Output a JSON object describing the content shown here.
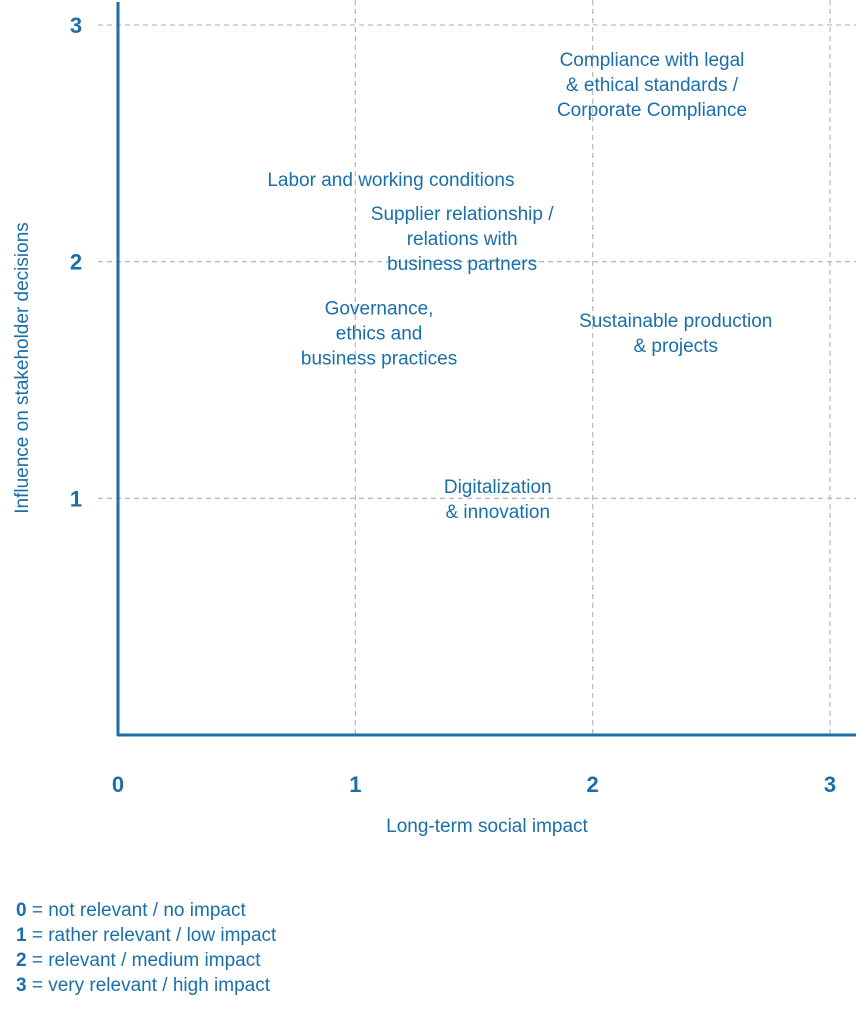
{
  "chart_data": {
    "type": "scatter",
    "title": "",
    "xlabel": "Long-term social impact",
    "ylabel": "Influence on stakeholder decisions",
    "xlim": [
      0,
      3
    ],
    "ylim": [
      0,
      3
    ],
    "x_ticks": [
      "0",
      "1",
      "2",
      "3"
    ],
    "y_ticks": [
      "1",
      "2",
      "3"
    ],
    "grid": "dashed",
    "points": [
      {
        "label_lines": [
          "Compliance with legal",
          "& ethical standards /",
          "Corporate Compliance"
        ],
        "x": 2.25,
        "y": 2.75
      },
      {
        "label_lines": [
          "Labor and working conditions"
        ],
        "x": 1.15,
        "y": 2.35
      },
      {
        "label_lines": [
          "Supplier relationship /",
          "relations with",
          "business partners"
        ],
        "x": 1.45,
        "y": 2.1
      },
      {
        "label_lines": [
          "Governance,",
          "ethics and",
          "business practices"
        ],
        "x": 1.1,
        "y": 1.7
      },
      {
        "label_lines": [
          "Sustainable production",
          "& projects"
        ],
        "x": 2.35,
        "y": 1.7
      },
      {
        "label_lines": [
          "Digitalization",
          "& innovation"
        ],
        "x": 1.6,
        "y": 1.0
      }
    ],
    "colors": {
      "primary": "#1a6fa8",
      "grid": "#bdbdbd"
    }
  },
  "legend": [
    {
      "key": "0",
      "text": " = not relevant / no impact"
    },
    {
      "key": "1",
      "text": " = rather relevant / low impact"
    },
    {
      "key": "2",
      "text": " = relevant / medium impact"
    },
    {
      "key": "3",
      "text": " = very relevant / high impact"
    }
  ]
}
